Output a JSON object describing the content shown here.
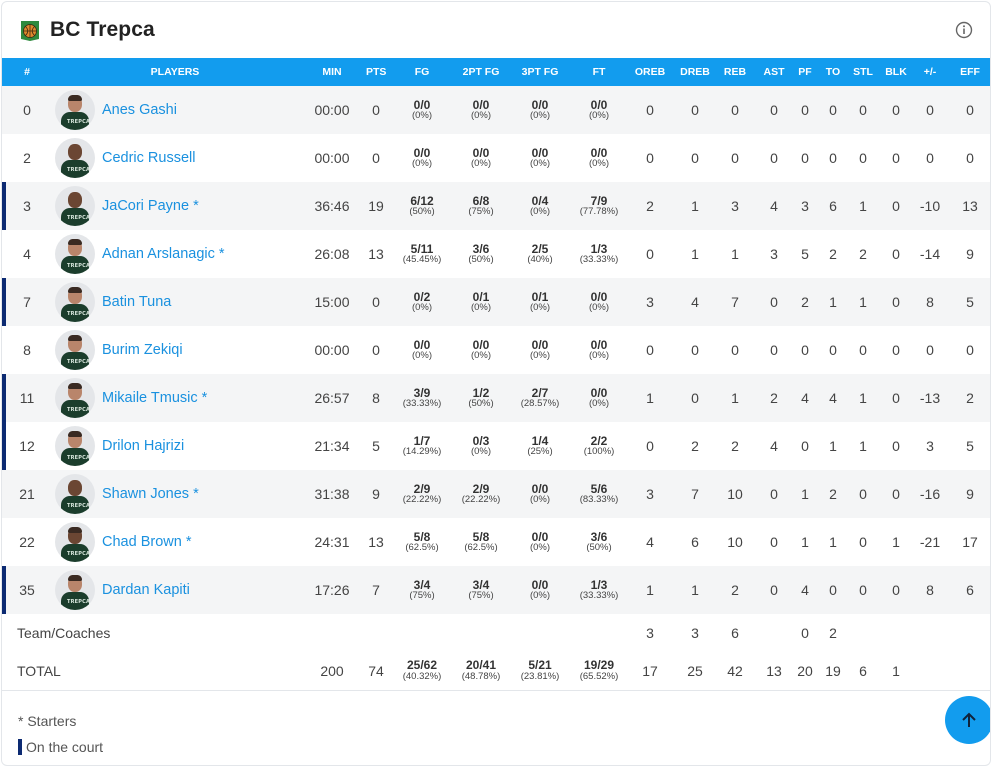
{
  "team": {
    "name": "BC Trepca"
  },
  "columns": [
    "#",
    "PLAYERS",
    "MIN",
    "PTS",
    "FG",
    "2PT FG",
    "3PT FG",
    "FT",
    "OREB",
    "DREB",
    "REB",
    "AST",
    "PF",
    "TO",
    "STL",
    "BLK",
    "+/-",
    "EFF"
  ],
  "players": [
    {
      "num": "0",
      "name": "Anes Gashi",
      "oncourt": false,
      "min": "00:00",
      "pts": "0",
      "fg": "0/0",
      "fg_pct": "(0%)",
      "fg2": "0/0",
      "fg2_pct": "(0%)",
      "fg3": "0/0",
      "fg3_pct": "(0%)",
      "ft": "0/0",
      "ft_pct": "(0%)",
      "oreb": "0",
      "dreb": "0",
      "reb": "0",
      "ast": "0",
      "pf": "0",
      "to": "0",
      "stl": "0",
      "blk": "0",
      "pm": "0",
      "eff": "0"
    },
    {
      "num": "2",
      "name": "Cedric Russell",
      "oncourt": false,
      "min": "00:00",
      "pts": "0",
      "fg": "0/0",
      "fg_pct": "(0%)",
      "fg2": "0/0",
      "fg2_pct": "(0%)",
      "fg3": "0/0",
      "fg3_pct": "(0%)",
      "ft": "0/0",
      "ft_pct": "(0%)",
      "oreb": "0",
      "dreb": "0",
      "reb": "0",
      "ast": "0",
      "pf": "0",
      "to": "0",
      "stl": "0",
      "blk": "0",
      "pm": "0",
      "eff": "0"
    },
    {
      "num": "3",
      "name": "JaCori Payne *",
      "oncourt": true,
      "min": "36:46",
      "pts": "19",
      "fg": "6/12",
      "fg_pct": "(50%)",
      "fg2": "6/8",
      "fg2_pct": "(75%)",
      "fg3": "0/4",
      "fg3_pct": "(0%)",
      "ft": "7/9",
      "ft_pct": "(77.78%)",
      "oreb": "2",
      "dreb": "1",
      "reb": "3",
      "ast": "4",
      "pf": "3",
      "to": "6",
      "stl": "1",
      "blk": "0",
      "pm": "-10",
      "eff": "13"
    },
    {
      "num": "4",
      "name": "Adnan Arslanagic *",
      "oncourt": false,
      "min": "26:08",
      "pts": "13",
      "fg": "5/11",
      "fg_pct": "(45.45%)",
      "fg2": "3/6",
      "fg2_pct": "(50%)",
      "fg3": "2/5",
      "fg3_pct": "(40%)",
      "ft": "1/3",
      "ft_pct": "(33.33%)",
      "oreb": "0",
      "dreb": "1",
      "reb": "1",
      "ast": "3",
      "pf": "5",
      "to": "2",
      "stl": "2",
      "blk": "0",
      "pm": "-14",
      "eff": "9"
    },
    {
      "num": "7",
      "name": "Batin Tuna",
      "oncourt": true,
      "min": "15:00",
      "pts": "0",
      "fg": "0/2",
      "fg_pct": "(0%)",
      "fg2": "0/1",
      "fg2_pct": "(0%)",
      "fg3": "0/1",
      "fg3_pct": "(0%)",
      "ft": "0/0",
      "ft_pct": "(0%)",
      "oreb": "3",
      "dreb": "4",
      "reb": "7",
      "ast": "0",
      "pf": "2",
      "to": "1",
      "stl": "1",
      "blk": "0",
      "pm": "8",
      "eff": "5"
    },
    {
      "num": "8",
      "name": "Burim Zekiqi",
      "oncourt": false,
      "min": "00:00",
      "pts": "0",
      "fg": "0/0",
      "fg_pct": "(0%)",
      "fg2": "0/0",
      "fg2_pct": "(0%)",
      "fg3": "0/0",
      "fg3_pct": "(0%)",
      "ft": "0/0",
      "ft_pct": "(0%)",
      "oreb": "0",
      "dreb": "0",
      "reb": "0",
      "ast": "0",
      "pf": "0",
      "to": "0",
      "stl": "0",
      "blk": "0",
      "pm": "0",
      "eff": "0"
    },
    {
      "num": "11",
      "name": "Mikaile Tmusic *",
      "oncourt": true,
      "min": "26:57",
      "pts": "8",
      "fg": "3/9",
      "fg_pct": "(33.33%)",
      "fg2": "1/2",
      "fg2_pct": "(50%)",
      "fg3": "2/7",
      "fg3_pct": "(28.57%)",
      "ft": "0/0",
      "ft_pct": "(0%)",
      "oreb": "1",
      "dreb": "0",
      "reb": "1",
      "ast": "2",
      "pf": "4",
      "to": "4",
      "stl": "1",
      "blk": "0",
      "pm": "-13",
      "eff": "2"
    },
    {
      "num": "12",
      "name": "Drilon Hajrizi",
      "oncourt": true,
      "min": "21:34",
      "pts": "5",
      "fg": "1/7",
      "fg_pct": "(14.29%)",
      "fg2": "0/3",
      "fg2_pct": "(0%)",
      "fg3": "1/4",
      "fg3_pct": "(25%)",
      "ft": "2/2",
      "ft_pct": "(100%)",
      "oreb": "0",
      "dreb": "2",
      "reb": "2",
      "ast": "4",
      "pf": "0",
      "to": "1",
      "stl": "1",
      "blk": "0",
      "pm": "3",
      "eff": "5"
    },
    {
      "num": "21",
      "name": "Shawn Jones *",
      "oncourt": false,
      "min": "31:38",
      "pts": "9",
      "fg": "2/9",
      "fg_pct": "(22.22%)",
      "fg2": "2/9",
      "fg2_pct": "(22.22%)",
      "fg3": "0/0",
      "fg3_pct": "(0%)",
      "ft": "5/6",
      "ft_pct": "(83.33%)",
      "oreb": "3",
      "dreb": "7",
      "reb": "10",
      "ast": "0",
      "pf": "1",
      "to": "2",
      "stl": "0",
      "blk": "0",
      "pm": "-16",
      "eff": "9"
    },
    {
      "num": "22",
      "name": "Chad Brown *",
      "oncourt": false,
      "min": "24:31",
      "pts": "13",
      "fg": "5/8",
      "fg_pct": "(62.5%)",
      "fg2": "5/8",
      "fg2_pct": "(62.5%)",
      "fg3": "0/0",
      "fg3_pct": "(0%)",
      "ft": "3/6",
      "ft_pct": "(50%)",
      "oreb": "4",
      "dreb": "6",
      "reb": "10",
      "ast": "0",
      "pf": "1",
      "to": "1",
      "stl": "0",
      "blk": "1",
      "pm": "-21",
      "eff": "17"
    },
    {
      "num": "35",
      "name": "Dardan Kapiti",
      "oncourt": true,
      "min": "17:26",
      "pts": "7",
      "fg": "3/4",
      "fg_pct": "(75%)",
      "fg2": "3/4",
      "fg2_pct": "(75%)",
      "fg3": "0/0",
      "fg3_pct": "(0%)",
      "ft": "1/3",
      "ft_pct": "(33.33%)",
      "oreb": "1",
      "dreb": "1",
      "reb": "2",
      "ast": "0",
      "pf": "4",
      "to": "0",
      "stl": "0",
      "blk": "0",
      "pm": "8",
      "eff": "6"
    }
  ],
  "team_coaches": {
    "label": "Team/Coaches",
    "oreb": "3",
    "dreb": "3",
    "reb": "6",
    "ast": "",
    "pf": "0",
    "to": "2",
    "stl": "",
    "blk": ""
  },
  "total": {
    "label": "TOTAL",
    "min": "200",
    "pts": "74",
    "fg": "25/62",
    "fg_pct": "(40.32%)",
    "fg2": "20/41",
    "fg2_pct": "(48.78%)",
    "fg3": "5/21",
    "fg3_pct": "(23.81%)",
    "ft": "19/29",
    "ft_pct": "(65.52%)",
    "oreb": "17",
    "dreb": "25",
    "reb": "42",
    "ast": "13",
    "pf": "20",
    "to": "19",
    "stl": "6",
    "blk": "1",
    "pm": "",
    "eff": ""
  },
  "legend": {
    "starters": "* Starters",
    "oncourt": "On the court"
  },
  "icons": {
    "info": "info-icon",
    "scroll_top": "arrow-up-icon",
    "logo": "team-logo-icon"
  },
  "colors": {
    "header_bg": "#129cee",
    "link": "#1a91df",
    "oncourt_bar": "#0c2a72"
  }
}
